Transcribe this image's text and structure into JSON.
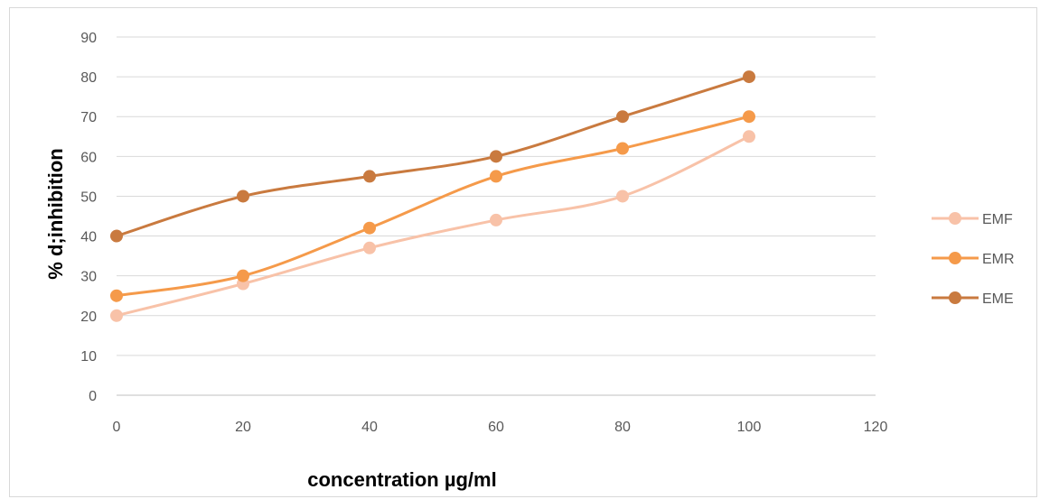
{
  "chart_data": {
    "type": "line",
    "title": "",
    "xlabel": "concentration µg/ml",
    "ylabel": "% d;inhibition",
    "xlim": [
      0,
      120
    ],
    "ylim": [
      0,
      90
    ],
    "x_ticks": [
      "0",
      "20",
      "40",
      "60",
      "80",
      "100",
      "120"
    ],
    "y_ticks": [
      "0",
      "10",
      "20",
      "30",
      "40",
      "50",
      "60",
      "70",
      "80",
      "90"
    ],
    "grid": "horizontal",
    "legend_position": "right",
    "x": [
      0,
      20,
      40,
      60,
      80,
      100
    ],
    "series": [
      {
        "name": "EMF",
        "color": "#f8c2a8",
        "values": [
          20,
          28,
          37,
          44,
          50,
          65
        ]
      },
      {
        "name": "EMR",
        "color": "#f59a4a",
        "values": [
          25,
          30,
          42,
          55,
          62,
          70
        ]
      },
      {
        "name": "EME",
        "color": "#c97a3f",
        "values": [
          40,
          50,
          55,
          60,
          70,
          80
        ]
      }
    ]
  }
}
